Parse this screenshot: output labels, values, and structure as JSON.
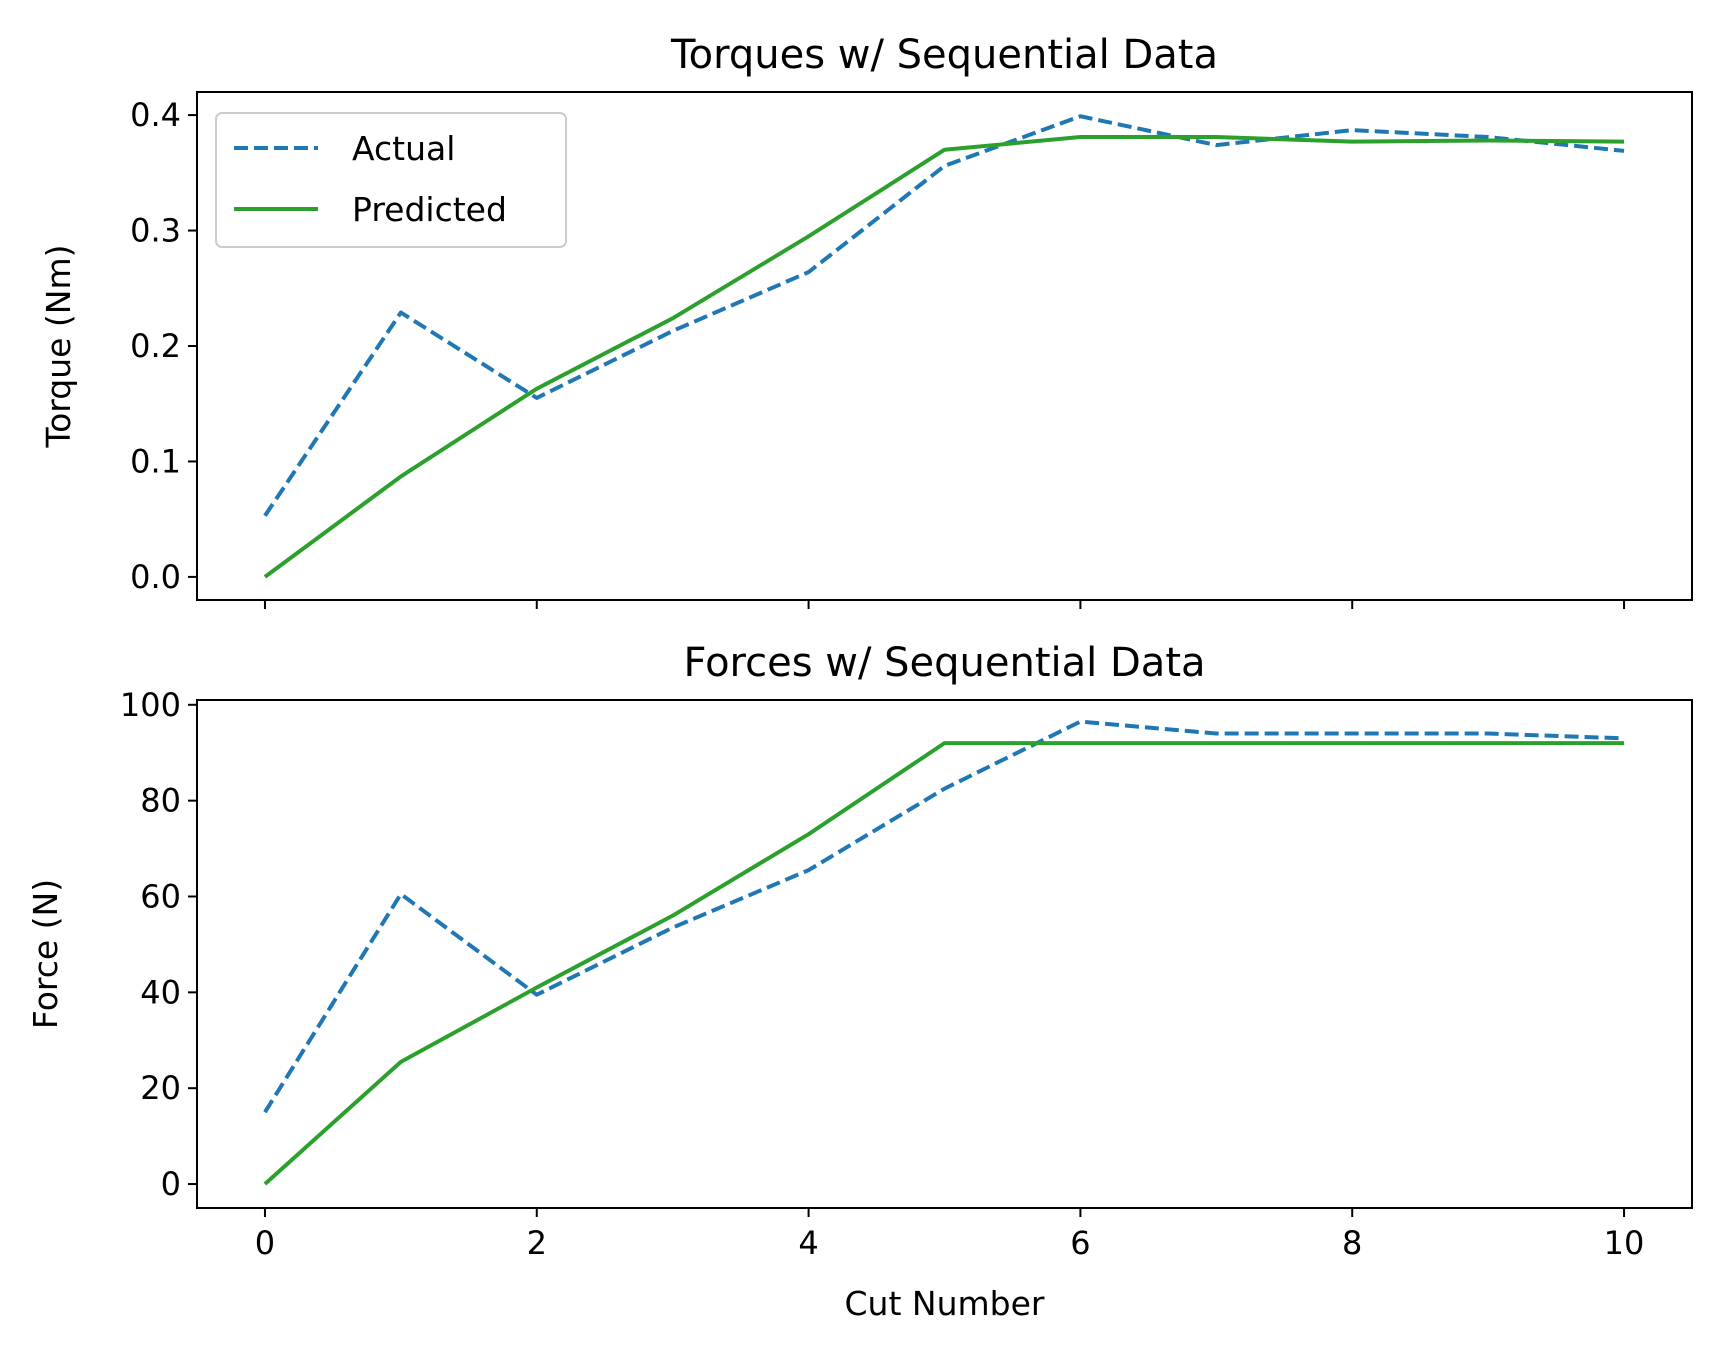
{
  "chart_data": [
    {
      "type": "line",
      "title": "Torques w/ Sequential Data",
      "xlabel": "",
      "ylabel": "Torque (Nm)",
      "x": [
        0,
        1,
        2,
        3,
        4,
        5,
        6,
        7,
        8,
        9,
        10
      ],
      "xlim": [
        -0.5,
        10.5
      ],
      "ylim": [
        -0.02,
        0.42
      ],
      "xticks": [
        0,
        2,
        4,
        6,
        8,
        10
      ],
      "xtick_labels_visible": false,
      "yticks": [
        0.0,
        0.1,
        0.2,
        0.3,
        0.4
      ],
      "ytick_labels": [
        "0.0",
        "0.1",
        "0.2",
        "0.3",
        "0.4"
      ],
      "grid": false,
      "legend": "top-left",
      "series": [
        {
          "name": "Actual",
          "style": "dashed",
          "color": "#1f77b4",
          "values": [
            0.053,
            0.229,
            0.155,
            0.213,
            0.264,
            0.356,
            0.399,
            0.374,
            0.387,
            0.381,
            0.369
          ]
        },
        {
          "name": "Predicted",
          "style": "solid",
          "color": "#2ca02c",
          "values": [
            0.0,
            0.087,
            0.163,
            0.224,
            0.295,
            0.37,
            0.381,
            0.381,
            0.377,
            0.378,
            0.377
          ]
        }
      ]
    },
    {
      "type": "line",
      "title": "Forces w/ Sequential Data",
      "xlabel": "Cut Number",
      "ylabel": "Force (N)",
      "x": [
        0,
        1,
        2,
        3,
        4,
        5,
        6,
        7,
        8,
        9,
        10
      ],
      "xlim": [
        -0.5,
        10.5
      ],
      "ylim": [
        -5,
        101
      ],
      "xticks": [
        0,
        2,
        4,
        6,
        8,
        10
      ],
      "xtick_labels": [
        "0",
        "2",
        "4",
        "6",
        "8",
        "10"
      ],
      "xtick_labels_visible": true,
      "yticks": [
        0,
        20,
        40,
        60,
        80,
        100
      ],
      "ytick_labels": [
        "0",
        "20",
        "40",
        "60",
        "80",
        "100"
      ],
      "grid": false,
      "legend": "none",
      "series": [
        {
          "style": "dashed",
          "color": "#1f77b4",
          "values": [
            15,
            60.5,
            39.5,
            53.5,
            65.5,
            82.5,
            96.5,
            94,
            94,
            94,
            93
          ]
        },
        {
          "style": "solid",
          "color": "#2ca02c",
          "values": [
            0,
            25.5,
            41,
            56,
            73,
            92,
            92,
            92,
            92,
            92,
            92
          ]
        }
      ]
    }
  ]
}
